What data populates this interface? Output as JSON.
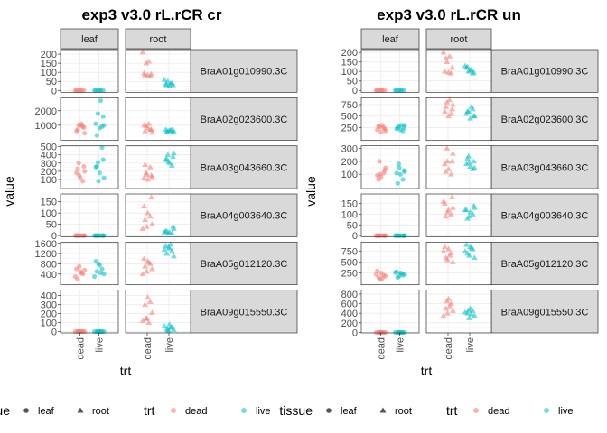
{
  "colors": {
    "dead": "#F8766D",
    "live": "#00BFC4",
    "strip_bg": "#D9D9D9",
    "grid_major": "#EBEBEB",
    "grid_minor": "#F5F5F5",
    "border": "#333333"
  },
  "chart_data": [
    {
      "type": "scatter",
      "title": "exp3 v3.0 rL.rCR cr",
      "xlabel": "trt",
      "ylabel": "value",
      "x_categories": [
        "dead",
        "live"
      ],
      "column_facets": [
        "leaf",
        "root"
      ],
      "rows": [
        {
          "gene": "BraA01g010990.3C",
          "ylim": [
            -10,
            225
          ],
          "yticks": [
            0,
            50,
            100,
            150,
            200
          ],
          "leaf": {
            "dead": [
              0,
              0,
              0,
              0,
              0,
              0
            ],
            "live": [
              0,
              0,
              0,
              0,
              0,
              0
            ]
          },
          "root": {
            "dead": [
              210,
              160,
              150,
              90,
              95,
              85,
              80,
              85
            ],
            "live": [
              60,
              40,
              50,
              30,
              35,
              25,
              40,
              30
            ]
          }
        },
        {
          "gene": "BraA02g023600.3C",
          "ylim": [
            -50,
            2900
          ],
          "yticks": [
            1000,
            2000
          ],
          "leaf": {
            "dead": [
              1100,
              1000,
              850,
              600,
              1000,
              900,
              700,
              450
            ],
            "live": [
              2700,
              1800,
              1600,
              1100,
              800,
              900,
              300,
              1000
            ]
          },
          "root": {
            "dead": [
              1100,
              950,
              700,
              1000,
              800,
              700,
              600,
              500
            ],
            "live": [
              650,
              600,
              500,
              700,
              650,
              700,
              550,
              600
            ]
          }
        },
        {
          "gene": "BraA03g043660.3C",
          "ylim": [
            -10,
            510
          ],
          "yticks": [
            100,
            200,
            300,
            400,
            500
          ],
          "leaf": {
            "dead": [
              300,
              260,
              180,
              120,
              80,
              230,
              200,
              150
            ],
            "live": [
              310,
              340,
              250,
              180,
              490,
              260,
              120,
              80
            ]
          },
          "root": {
            "dead": [
              180,
              150,
              120,
              100,
              250,
              280,
              130,
              160
            ],
            "live": [
              400,
              380,
              340,
              300,
              270,
              350,
              420,
              320
            ]
          }
        },
        {
          "gene": "BraA04g003640.3C",
          "ylim": [
            -5,
            185
          ],
          "yticks": [
            0,
            50,
            100,
            150
          ],
          "leaf": {
            "dead": [
              0,
              0,
              0,
              0,
              0,
              0,
              0,
              0
            ],
            "live": [
              0,
              0,
              0,
              0,
              0,
              0,
              0,
              0
            ]
          },
          "root": {
            "dead": [
              170,
              130,
              100,
              85,
              70,
              50,
              40,
              30
            ],
            "live": [
              40,
              20,
              15,
              10,
              20,
              30,
              10,
              15
            ]
          }
        },
        {
          "gene": "BraA05g012120.3C",
          "ylim": [
            -20,
            1650
          ],
          "yticks": [
            400,
            800,
            1200,
            1600
          ],
          "leaf": {
            "dead": [
              600,
              500,
              400,
              200,
              550,
              700,
              300,
              450
            ],
            "live": [
              900,
              750,
              600,
              500,
              400,
              800,
              300,
              450
            ]
          },
          "root": {
            "dead": [
              1000,
              900,
              800,
              700,
              600,
              500,
              400,
              850
            ],
            "live": [
              1500,
              1400,
              1300,
              1200,
              1100,
              1450,
              1350,
              1550
            ]
          }
        },
        {
          "gene": "BraA09g015550.3C",
          "ylim": [
            -15,
            460
          ],
          "yticks": [
            0,
            100,
            200,
            300,
            400
          ],
          "leaf": {
            "dead": [
              0,
              0,
              0,
              0,
              0,
              0,
              0,
              0
            ],
            "live": [
              0,
              0,
              0,
              0,
              0,
              0,
              0,
              0
            ]
          },
          "root": {
            "dead": [
              380,
              330,
              300,
              210,
              150,
              120,
              100,
              140
            ],
            "live": [
              80,
              50,
              30,
              20,
              10,
              60,
              40,
              15
            ]
          }
        }
      ]
    },
    {
      "type": "scatter",
      "title": "exp3 v3.0 rL.rCR un",
      "xlabel": "trt",
      "ylabel": "value",
      "x_categories": [
        "dead",
        "live"
      ],
      "column_facets": [
        "leaf",
        "root"
      ],
      "rows": [
        {
          "gene": "BraA01g010990.3C",
          "ylim": [
            -10,
            215
          ],
          "yticks": [
            0,
            50,
            100,
            150,
            200
          ],
          "leaf": {
            "dead": [
              0,
              0,
              0,
              0,
              0,
              0
            ],
            "live": [
              0,
              0,
              0,
              0,
              0,
              0
            ]
          },
          "root": {
            "dead": [
              200,
              180,
              150,
              120,
              100,
              95,
              90,
              170
            ],
            "live": [
              130,
              110,
              100,
              95,
              120,
              105,
              90,
              125
            ]
          }
        },
        {
          "gene": "BraA02g023600.3C",
          "ylim": [
            -30,
            900
          ],
          "yticks": [
            250,
            500,
            750
          ],
          "leaf": {
            "dead": [
              300,
              260,
              220,
              200,
              150,
              250,
              280,
              180
            ],
            "live": [
              300,
              280,
              250,
              220,
              200,
              180,
              250,
              300
            ]
          },
          "root": {
            "dead": [
              850,
              800,
              650,
              600,
              500,
              550,
              700,
              750
            ],
            "live": [
              700,
              600,
              500,
              550,
              450,
              650,
              600,
              500
            ]
          }
        },
        {
          "gene": "BraA03g043660.3C",
          "ylim": [
            -10,
            320
          ],
          "yticks": [
            100,
            200,
            300
          ],
          "leaf": {
            "dead": [
              200,
              130,
              90,
              80,
              110,
              60,
              150,
              100
            ],
            "live": [
              180,
              130,
              110,
              100,
              60,
              30,
              120,
              150
            ]
          },
          "root": {
            "dead": [
              300,
              200,
              180,
              140,
              100,
              120,
              260,
              200
            ],
            "live": [
              240,
              200,
              180,
              160,
              140,
              220,
              150,
              190
            ]
          }
        },
        {
          "gene": "BraA04g003640.3C",
          "ylim": [
            -5,
            195
          ],
          "yticks": [
            0,
            50,
            100,
            150
          ],
          "leaf": {
            "dead": [
              0,
              0,
              0,
              0,
              0,
              0,
              0,
              0
            ],
            "live": [
              0,
              0,
              0,
              0,
              0,
              0,
              0,
              0
            ]
          },
          "root": {
            "dead": [
              180,
              150,
              120,
              100,
              90,
              130,
              110,
              160
            ],
            "live": [
              140,
              120,
              110,
              100,
              80,
              130,
              90,
              120
            ]
          }
        },
        {
          "gene": "BraA05g012120.3C",
          "ylim": [
            -20,
            960
          ],
          "yticks": [
            250,
            500,
            750
          ],
          "leaf": {
            "dead": [
              300,
              250,
              200,
              150,
              180,
              100,
              220,
              130
            ],
            "live": [
              280,
              250,
              200,
              150,
              220,
              180,
              260,
              240
            ]
          },
          "root": {
            "dead": [
              850,
              800,
              700,
              600,
              500,
              550,
              750,
              650
            ],
            "live": [
              900,
              850,
              800,
              700,
              600,
              650,
              750,
              820
            ]
          }
        },
        {
          "gene": "BraA09g015550.3C",
          "ylim": [
            -10,
            880
          ],
          "yticks": [
            0,
            200,
            400,
            600,
            800
          ],
          "leaf": {
            "dead": [
              0,
              0,
              0,
              0,
              0,
              0,
              0,
              0
            ],
            "live": [
              0,
              0,
              0,
              0,
              0,
              0,
              0,
              0
            ]
          },
          "root": {
            "dead": [
              700,
              600,
              500,
              450,
              400,
              350,
              550,
              650
            ],
            "live": [
              500,
              450,
              400,
              350,
              300,
              420,
              380,
              460
            ]
          }
        }
      ]
    }
  ],
  "legend": {
    "tissue_title": "tissue",
    "tissue_items": [
      {
        "label": "leaf",
        "shape": "circle"
      },
      {
        "label": "root",
        "shape": "triangle"
      }
    ],
    "trt_title": "trt",
    "trt_items": [
      {
        "label": "dead",
        "key": "dead"
      },
      {
        "label": "live",
        "key": "live"
      }
    ]
  }
}
